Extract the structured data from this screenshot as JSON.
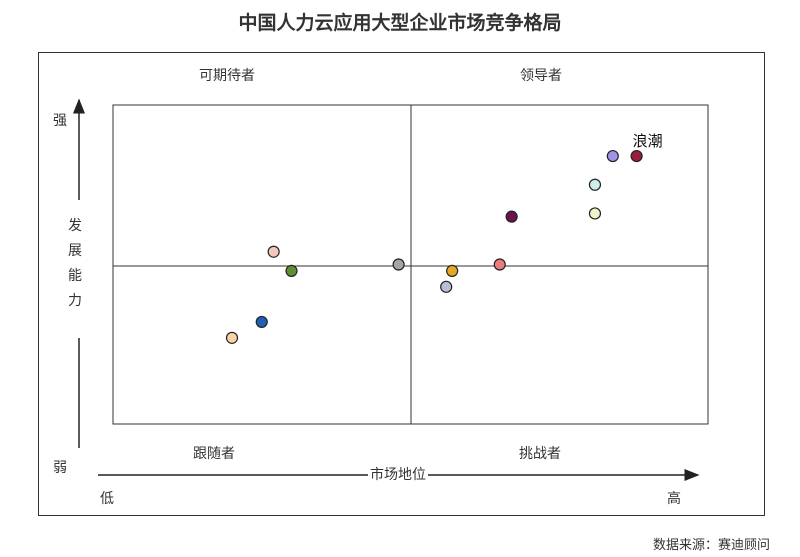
{
  "chart_data": {
    "type": "scatter",
    "title": "中国人力云应用大型企业市场竞争格局",
    "xlabel": "市场地位",
    "ylabel": "发展能力",
    "x_low": "低",
    "x_high": "高",
    "y_high": "强",
    "y_low": "弱",
    "xlim": [
      0,
      100
    ],
    "ylim": [
      0,
      100
    ],
    "quadrants": {
      "top_left": "可期待者",
      "top_right": "领导者",
      "bottom_left": "跟随者",
      "bottom_right": "挑战者"
    },
    "points": [
      {
        "x": 20,
        "y": 27,
        "color": "#f9d3a8"
      },
      {
        "x": 25,
        "y": 32,
        "color": "#1f5fb4"
      },
      {
        "x": 27,
        "y": 54,
        "color": "#f2c8bc"
      },
      {
        "x": 30,
        "y": 48,
        "color": "#5e8f33"
      },
      {
        "x": 48,
        "y": 50,
        "color": "#a5a5a5"
      },
      {
        "x": 56,
        "y": 43,
        "color": "#b9bdd8"
      },
      {
        "x": 57,
        "y": 48,
        "color": "#e7a827"
      },
      {
        "x": 65,
        "y": 50,
        "color": "#e97c7c"
      },
      {
        "x": 67,
        "y": 65,
        "color": "#6a1251"
      },
      {
        "x": 81,
        "y": 66,
        "color": "#eff5c9"
      },
      {
        "x": 81,
        "y": 75,
        "color": "#cdeee9"
      },
      {
        "x": 84,
        "y": 84,
        "color": "#9f94e6"
      },
      {
        "x": 88,
        "y": 84,
        "color": "#9c1c3f",
        "label": "浪潮"
      }
    ]
  },
  "source": "数据来源：赛迪顾问"
}
